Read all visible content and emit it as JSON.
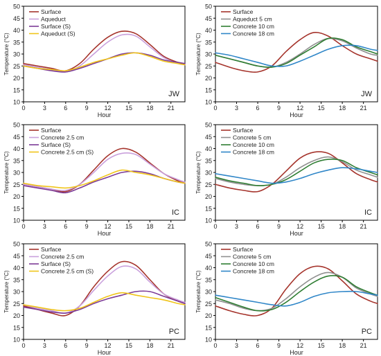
{
  "chart_data": [
    {
      "type": "line",
      "panel_label": "JW",
      "xlabel": "Hour",
      "ylabel": "Temperature (°C)",
      "xlim": [
        0,
        23
      ],
      "ylim": [
        10,
        50
      ],
      "xticks": [
        0,
        3,
        6,
        9,
        12,
        15,
        18,
        21
      ],
      "yticks": [
        10,
        15,
        20,
        25,
        30,
        35,
        40,
        45,
        50
      ],
      "grid": false,
      "legend_position": "top-left",
      "x": [
        0,
        2,
        4,
        6,
        8,
        10,
        12,
        14,
        16,
        18,
        20,
        22,
        23
      ],
      "series": [
        {
          "name": "Surface",
          "color": "#a5332b",
          "values": [
            26,
            25,
            24,
            23,
            26,
            32,
            37,
            39.5,
            38.5,
            34,
            29,
            26.5,
            26
          ]
        },
        {
          "name": "Aqueduct",
          "color": "#c9a0dc",
          "values": [
            25.5,
            24.5,
            23.5,
            22.5,
            25,
            30,
            35,
            38,
            37.5,
            33,
            28.5,
            26,
            25.5
          ]
        },
        {
          "name": "Surface (S)",
          "color": "#7b3a96",
          "values": [
            25,
            24,
            23,
            22.5,
            24,
            26,
            28,
            30,
            30.5,
            29.5,
            27.5,
            26.5,
            26
          ]
        },
        {
          "name": "Aqueduct (S)",
          "color": "#f0c419",
          "values": [
            25,
            24,
            23.5,
            23,
            24.5,
            26.5,
            28,
            29.5,
            30.5,
            29,
            27,
            26,
            25.5
          ]
        }
      ]
    },
    {
      "type": "line",
      "panel_label": "JW",
      "xlabel": "Hour",
      "ylabel": "Temperature (°C)",
      "xlim": [
        0,
        23
      ],
      "ylim": [
        10,
        50
      ],
      "xticks": [
        0,
        3,
        6,
        9,
        12,
        15,
        18,
        21
      ],
      "yticks": [
        10,
        15,
        20,
        25,
        30,
        35,
        40,
        45,
        50
      ],
      "grid": false,
      "legend_position": "top-left",
      "x": [
        0,
        2,
        4,
        6,
        8,
        10,
        12,
        14,
        16,
        18,
        20,
        22,
        23
      ],
      "series": [
        {
          "name": "Surface",
          "color": "#a5332b",
          "values": [
            26.5,
            24.5,
            23,
            22.5,
            25,
            31,
            36,
            39,
            37.5,
            33.5,
            30,
            28,
            27
          ]
        },
        {
          "name": "Aqueduct 5 cm",
          "color": "#8f8f8f",
          "values": [
            29.5,
            28,
            26.5,
            25,
            24.5,
            26.5,
            30,
            34,
            36.5,
            35.5,
            32.5,
            30,
            29.5
          ]
        },
        {
          "name": "Concrete 10 cm",
          "color": "#2e7d32",
          "values": [
            29.5,
            28,
            26.5,
            25,
            24.5,
            26,
            29.5,
            33,
            36.5,
            36,
            33,
            31,
            30
          ]
        },
        {
          "name": "Concrete 18 cm",
          "color": "#2f86c8",
          "values": [
            30.5,
            29.5,
            28,
            26.5,
            25,
            25,
            27,
            29.5,
            32,
            33.5,
            33.5,
            32,
            31.5
          ]
        }
      ]
    },
    {
      "type": "line",
      "panel_label": "IC",
      "xlabel": "Hour",
      "ylabel": "Temperature (°C)",
      "xlim": [
        0,
        23
      ],
      "ylim": [
        10,
        50
      ],
      "xticks": [
        0,
        3,
        6,
        9,
        12,
        15,
        18,
        21
      ],
      "yticks": [
        10,
        15,
        20,
        25,
        30,
        35,
        40,
        45,
        50
      ],
      "grid": false,
      "legend_position": "top-left",
      "x": [
        0,
        2,
        4,
        6,
        8,
        10,
        12,
        14,
        16,
        18,
        20,
        22,
        23
      ],
      "series": [
        {
          "name": "Surface",
          "color": "#a5332b",
          "values": [
            25,
            24,
            23,
            22,
            25,
            31,
            37,
            40,
            38.5,
            34,
            29.5,
            26.5,
            25.5
          ]
        },
        {
          "name": "Concrete 2.5 cm",
          "color": "#c9a0dc",
          "values": [
            25,
            24,
            23,
            22.5,
            25,
            30,
            35.5,
            38,
            37.5,
            33.5,
            29.5,
            27,
            26
          ]
        },
        {
          "name": "Surface (S)",
          "color": "#7b3a96",
          "values": [
            24.5,
            23.5,
            22.5,
            21.5,
            23.5,
            26,
            28,
            30,
            30.5,
            29.5,
            27.5,
            26,
            25.5
          ]
        },
        {
          "name": "Concrete 2.5 cm (S)",
          "color": "#f0c419",
          "values": [
            25.5,
            24.5,
            24,
            23.5,
            24.5,
            26.5,
            29,
            31,
            30,
            29,
            27.5,
            26,
            25.5
          ]
        }
      ]
    },
    {
      "type": "line",
      "panel_label": "IC",
      "xlabel": "Hour",
      "ylabel": "Temperature (°C)",
      "xlim": [
        0,
        23
      ],
      "ylim": [
        10,
        50
      ],
      "xticks": [
        0,
        3,
        6,
        9,
        12,
        15,
        18,
        21
      ],
      "yticks": [
        10,
        15,
        20,
        25,
        30,
        35,
        40,
        45,
        50
      ],
      "grid": false,
      "legend_position": "top-left",
      "x": [
        0,
        2,
        4,
        6,
        8,
        10,
        12,
        14,
        16,
        18,
        20,
        22,
        23
      ],
      "series": [
        {
          "name": "Surface",
          "color": "#a5332b",
          "values": [
            25,
            23.5,
            22.5,
            22,
            25,
            30.5,
            36,
            38.5,
            38,
            34,
            29.5,
            27,
            26
          ]
        },
        {
          "name": "Concrete 5 cm",
          "color": "#8f8f8f",
          "values": [
            27.5,
            26,
            25,
            24.5,
            25,
            28,
            32,
            35,
            36.5,
            34.5,
            31,
            29,
            28
          ]
        },
        {
          "name": "Concrete 10 cm",
          "color": "#2e7d32",
          "values": [
            28,
            26.5,
            25.5,
            24.5,
            25,
            27,
            30.5,
            34,
            35.5,
            35,
            32,
            30,
            29
          ]
        },
        {
          "name": "Concrete 18 cm",
          "color": "#2f86c8",
          "values": [
            29.5,
            28.5,
            27.5,
            26.5,
            25.5,
            26,
            27.5,
            29.5,
            31,
            32,
            31.5,
            30.5,
            30
          ]
        }
      ]
    },
    {
      "type": "line",
      "panel_label": "PC",
      "xlabel": "Hour",
      "ylabel": "Temperature (°C)",
      "xlim": [
        0,
        23
      ],
      "ylim": [
        10,
        50
      ],
      "xticks": [
        0,
        3,
        6,
        9,
        12,
        15,
        18,
        21
      ],
      "yticks": [
        10,
        15,
        20,
        25,
        30,
        35,
        40,
        45,
        50
      ],
      "grid": false,
      "legend_position": "top-left",
      "x": [
        0,
        2,
        4,
        6,
        8,
        10,
        12,
        14,
        16,
        18,
        20,
        22,
        23
      ],
      "series": [
        {
          "name": "Surface",
          "color": "#a5332b",
          "values": [
            24,
            22.5,
            21,
            20,
            24,
            32,
            38.5,
            42.5,
            41,
            35,
            29,
            26,
            25
          ]
        },
        {
          "name": "Concrete 2.5 cm",
          "color": "#c9a0dc",
          "values": [
            24.5,
            23,
            22,
            21,
            24,
            30.5,
            36.5,
            40.5,
            39.5,
            34,
            29,
            26.5,
            25.5
          ]
        },
        {
          "name": "Surface (S)",
          "color": "#7b3a96",
          "values": [
            23.5,
            22.5,
            21.5,
            21,
            22.5,
            25,
            27,
            28.5,
            30,
            30,
            28,
            26,
            25
          ]
        },
        {
          "name": "Concrete 2.5 cm (S)",
          "color": "#f0c419",
          "values": [
            24.5,
            23.5,
            22.5,
            22,
            23,
            25.5,
            28,
            29.5,
            28.5,
            27.5,
            26.5,
            25,
            24.5
          ]
        }
      ]
    },
    {
      "type": "line",
      "panel_label": "PC",
      "xlabel": "Hour",
      "ylabel": "Temperature (°C)",
      "xlim": [
        0,
        23
      ],
      "ylim": [
        10,
        50
      ],
      "xticks": [
        0,
        3,
        6,
        9,
        12,
        15,
        18,
        21
      ],
      "yticks": [
        10,
        15,
        20,
        25,
        30,
        35,
        40,
        45,
        50
      ],
      "grid": false,
      "legend_position": "top-left",
      "x": [
        0,
        2,
        4,
        6,
        8,
        10,
        12,
        14,
        16,
        18,
        20,
        22,
        23
      ],
      "series": [
        {
          "name": "Surface",
          "color": "#a5332b",
          "values": [
            24,
            22,
            20.5,
            20,
            23,
            31,
            37.5,
            40.5,
            39.5,
            34.5,
            29,
            26,
            25
          ]
        },
        {
          "name": "Concrete 5 cm",
          "color": "#8f8f8f",
          "values": [
            26.5,
            25,
            23,
            22,
            23,
            27,
            32,
            36,
            38,
            36,
            31.5,
            29,
            28
          ]
        },
        {
          "name": "Concrete 10 cm",
          "color": "#2e7d32",
          "values": [
            27.5,
            25.5,
            23.5,
            22,
            22.5,
            25.5,
            30,
            34,
            36.5,
            36,
            32,
            29.5,
            28.5
          ]
        },
        {
          "name": "Concrete 18 cm",
          "color": "#2f86c8",
          "values": [
            28.5,
            27.5,
            26.5,
            25.5,
            24.5,
            24,
            25.5,
            28,
            29.5,
            30,
            30,
            29,
            28.5
          ]
        }
      ]
    }
  ]
}
